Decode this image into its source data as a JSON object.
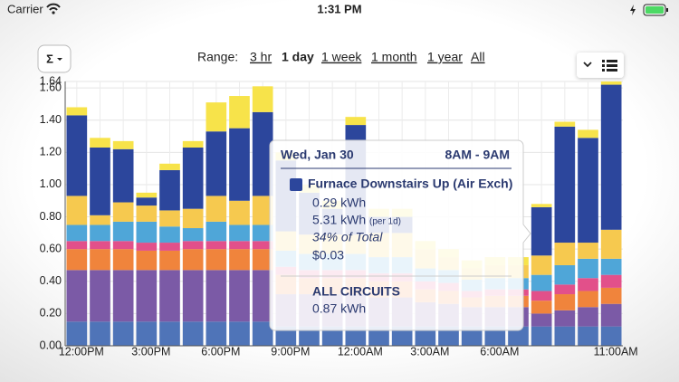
{
  "status": {
    "carrier": "Carrier",
    "time": "1:31 PM"
  },
  "controls": {
    "sum_button": "Σ",
    "range_label": "Range:",
    "ranges": [
      "3 hr",
      "1 day",
      "1 week",
      "1 month",
      "1 year",
      "All"
    ],
    "selected_index": 1
  },
  "tooltip": {
    "date": "Wed, Jan 30",
    "period": "8AM - 9AM",
    "circuit": "Furnace Downstairs Up (Air Exch)",
    "kwh": "0.29 kWh",
    "per_day": "5.31 kWh",
    "per_day_note": "(per 1d)",
    "share": "34% of Total",
    "cost": "$0.03",
    "all_label": "ALL CIRCUITS",
    "all_kwh": "0.87 kWh"
  },
  "chart_data": {
    "type": "bar",
    "stacked": true,
    "grid": true,
    "categories": [
      "12:00PM",
      null,
      null,
      "3:00PM",
      null,
      null,
      "6:00PM",
      null,
      null,
      "9:00PM",
      null,
      null,
      "12:00AM",
      null,
      null,
      "3:00AM",
      null,
      null,
      "6:00AM",
      null,
      null,
      null,
      null,
      "11:00AM"
    ],
    "ylim": [
      0,
      1.64
    ],
    "yticks": [
      {
        "value": 0,
        "label": "0.00"
      },
      {
        "value": 0.2,
        "label": "0.20"
      },
      {
        "value": 0.4,
        "label": "0.40"
      },
      {
        "value": 0.6,
        "label": "0.60"
      },
      {
        "value": 0.8,
        "label": "0.80"
      },
      {
        "value": 1.0,
        "label": "1.00"
      },
      {
        "value": 1.2,
        "label": "1.20"
      },
      {
        "value": 1.4,
        "label": "1.40"
      },
      {
        "value": 1.6,
        "label": "1.60"
      },
      1.64
    ],
    "series": [
      {
        "color": "#4f74b8",
        "values": [
          0.15,
          0.15,
          0.15,
          0.15,
          0.15,
          0.15,
          0.15,
          0.15,
          0.15,
          0.12,
          0.12,
          0.12,
          0.12,
          0.12,
          0.12,
          0.12,
          0.12,
          0.12,
          0.12,
          0.12,
          0.12,
          0.12,
          0.12,
          0.12
        ]
      },
      {
        "color": "#7b5aa6",
        "values": [
          0.32,
          0.32,
          0.32,
          0.32,
          0.32,
          0.32,
          0.32,
          0.32,
          0.32,
          0.2,
          0.2,
          0.2,
          0.2,
          0.18,
          0.18,
          0.15,
          0.14,
          0.12,
          0.12,
          0.12,
          0.08,
          0.1,
          0.12,
          0.14
        ]
      },
      {
        "color": "#f0843c",
        "values": [
          0.13,
          0.13,
          0.13,
          0.12,
          0.12,
          0.13,
          0.13,
          0.13,
          0.13,
          0.12,
          0.1,
          0.1,
          0.1,
          0.1,
          0.1,
          0.08,
          0.08,
          0.06,
          0.07,
          0.07,
          0.08,
          0.1,
          0.1,
          0.1
        ]
      },
      {
        "color": "#e2508a",
        "values": [
          0.05,
          0.05,
          0.05,
          0.05,
          0.05,
          0.05,
          0.05,
          0.05,
          0.05,
          0.05,
          0.05,
          0.05,
          0.05,
          0.05,
          0.05,
          0.05,
          0.05,
          0.04,
          0.04,
          0.04,
          0.06,
          0.06,
          0.08,
          0.08
        ]
      },
      {
        "color": "#4fa6d8",
        "values": [
          0.1,
          0.1,
          0.12,
          0.13,
          0.1,
          0.08,
          0.12,
          0.1,
          0.1,
          0.1,
          0.1,
          0.1,
          0.1,
          0.1,
          0.1,
          0.08,
          0.08,
          0.07,
          0.07,
          0.07,
          0.1,
          0.12,
          0.12,
          0.1
        ]
      },
      {
        "color": "#f6c94f",
        "values": [
          0.18,
          0.06,
          0.12,
          0.1,
          0.1,
          0.12,
          0.16,
          0.15,
          0.18,
          0.12,
          0.12,
          0.12,
          0.12,
          0.15,
          0.15,
          0.12,
          0.08,
          0.07,
          0.08,
          0.08,
          0.12,
          0.14,
          0.1,
          0.18
        ]
      },
      {
        "color": "#2c469c",
        "values": [
          0.5,
          0.42,
          0.33,
          0.05,
          0.25,
          0.38,
          0.4,
          0.45,
          0.52,
          0.44,
          0.26,
          0.16,
          0.68,
          0.1,
          0.1,
          0,
          0,
          0,
          0,
          0,
          0.3,
          0.72,
          0.65,
          0.9
        ]
      },
      {
        "color": "#f7e34a",
        "values": [
          0.05,
          0.06,
          0.05,
          0.03,
          0.04,
          0.04,
          0.18,
          0.2,
          0.16,
          0.05,
          0.05,
          0.05,
          0.05,
          0.05,
          0.05,
          0.05,
          0.05,
          0.05,
          0.05,
          0.05,
          0.02,
          0.03,
          0.05,
          0.02
        ]
      }
    ]
  }
}
